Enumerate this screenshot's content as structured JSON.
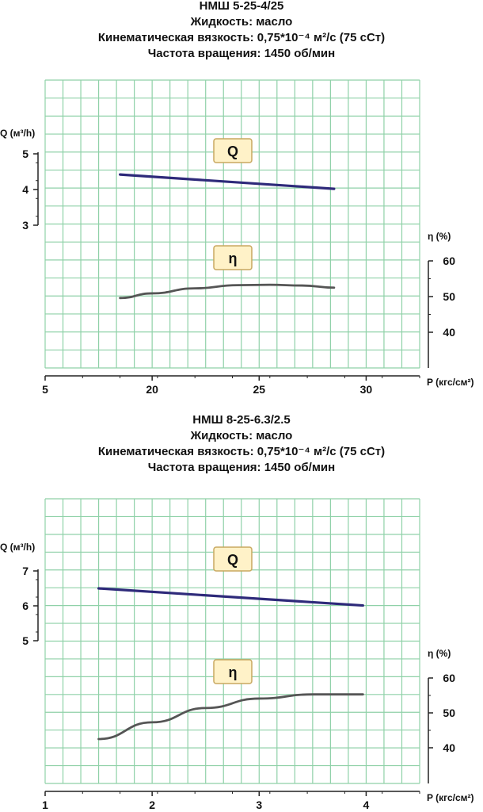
{
  "colors": {
    "grid": "#8fd1a8",
    "frame": "#222222",
    "q_line": "#2e2a7a",
    "eta_line": "#555555",
    "badge_fill": "#fff2c8",
    "badge_stroke": "#c8a860"
  },
  "chart_data": [
    {
      "type": "line",
      "title": "НМШ 5-25-4/25",
      "subtitle_lines": [
        "Жидкость: масло",
        "Кинематическая вязкость: 0,75*10⁻⁴ м²/с (75 сСт)",
        "Частота вращения: 1450 об/мин"
      ],
      "xlabel": "P (кгс/см²)",
      "x_ticks": [
        "5",
        "20",
        "25",
        "30"
      ],
      "x_tick_values": [
        5,
        20,
        25,
        30
      ],
      "xlim": [
        15,
        32.5
      ],
      "q_axis": {
        "label": "Q (м³/h)",
        "ticks": [
          "3",
          "4",
          "5"
        ],
        "tick_values": [
          3,
          4,
          5
        ],
        "badge": "Q"
      },
      "eta_axis": {
        "label": "η (%)",
        "ticks": [
          "40",
          "50",
          "60"
        ],
        "tick_values": [
          40,
          50,
          60
        ],
        "badge": "η"
      },
      "series": [
        {
          "name": "Q",
          "x": [
            18.5,
            28.5
          ],
          "y": [
            4.42,
            4.02
          ]
        },
        {
          "name": "η",
          "x": [
            18.5,
            20,
            22,
            24,
            25.5,
            27,
            28.5
          ],
          "y": [
            49.6,
            50.9,
            52.3,
            53.2,
            53.3,
            53.1,
            52.5
          ]
        }
      ]
    },
    {
      "type": "line",
      "title": "НМШ 8-25-6.3/2.5",
      "subtitle_lines": [
        "Жидкость: масло",
        "Кинематическая вязкость: 0,75*10⁻⁴ м²/с (75 сСт)",
        "Частота вращения: 1450 об/мин"
      ],
      "xlabel": "P (кгс/см²)",
      "x_ticks": [
        "1",
        "2",
        "3",
        "4"
      ],
      "x_tick_values": [
        1,
        2,
        3,
        4
      ],
      "xlim": [
        1,
        4.5
      ],
      "q_axis": {
        "label": "Q (м³/h)",
        "ticks": [
          "5",
          "6",
          "7"
        ],
        "tick_values": [
          5,
          6,
          7
        ],
        "badge": "Q"
      },
      "eta_axis": {
        "label": "η (%)",
        "ticks": [
          "40",
          "50",
          "60"
        ],
        "tick_values": [
          40,
          50,
          60
        ],
        "badge": "η"
      },
      "series": [
        {
          "name": "Q",
          "x": [
            1.5,
            3.97
          ],
          "y": [
            6.5,
            6.01
          ]
        },
        {
          "name": "η",
          "x": [
            1.5,
            2,
            2.5,
            3,
            3.5,
            3.97
          ],
          "y": [
            42.5,
            47.3,
            51.4,
            54.1,
            55.3,
            55.3
          ]
        }
      ]
    }
  ]
}
